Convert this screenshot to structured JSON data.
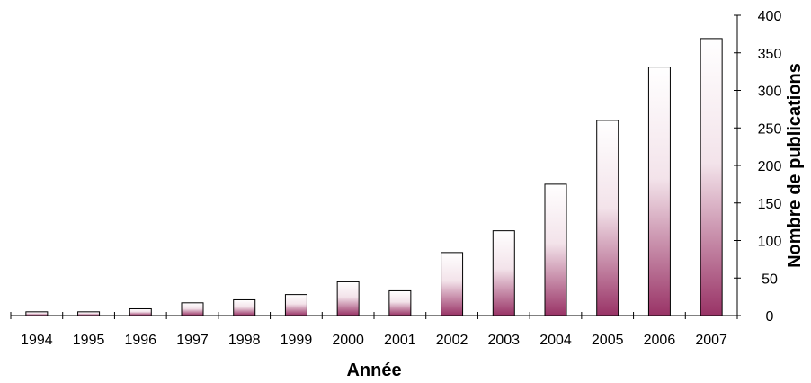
{
  "chart_data": {
    "type": "bar",
    "xlabel": "Année",
    "ylabel": "Nombre de publications",
    "categories": [
      "1994",
      "1995",
      "1996",
      "1997",
      "1998",
      "1999",
      "2000",
      "2001",
      "2002",
      "2003",
      "2004",
      "2005",
      "2006",
      "2007"
    ],
    "values": [
      5,
      5,
      9,
      17,
      21,
      28,
      45,
      33,
      84,
      113,
      175,
      260,
      331,
      369
    ],
    "ylim": [
      0,
      400
    ],
    "yticks": [
      0,
      50,
      100,
      150,
      200,
      250,
      300,
      350,
      400
    ],
    "y_axis_position": "right",
    "grid": false,
    "bar_gradient": {
      "top": "#ffffff",
      "bottom": "#993366"
    },
    "bar_outline": "#000000"
  }
}
